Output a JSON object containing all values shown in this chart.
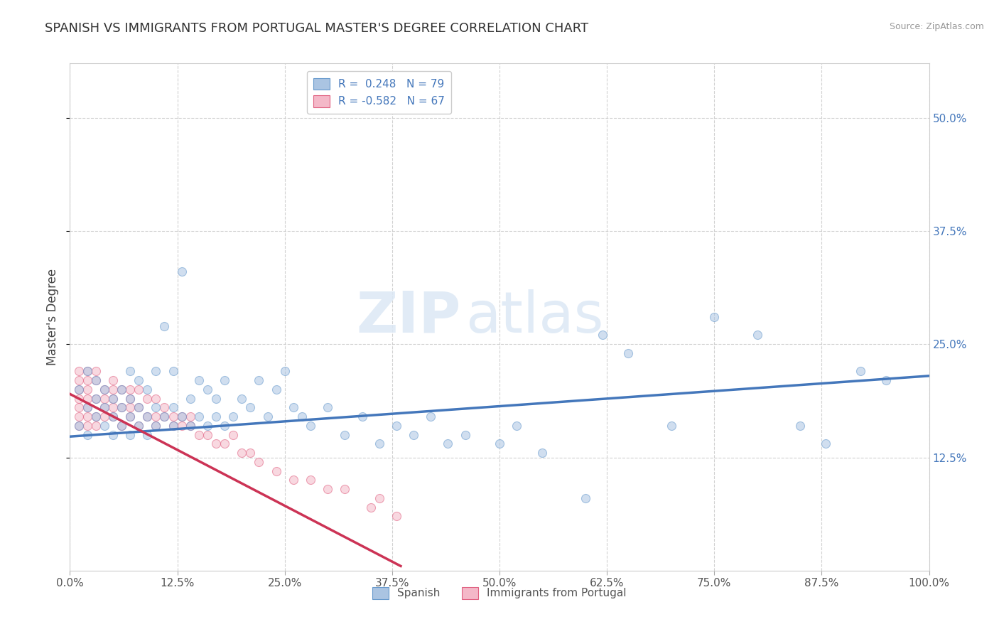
{
  "title": "SPANISH VS IMMIGRANTS FROM PORTUGAL MASTER'S DEGREE CORRELATION CHART",
  "source": "Source: ZipAtlas.com",
  "ylabel": "Master's Degree",
  "xlim": [
    0.0,
    1.0
  ],
  "ylim": [
    0.0,
    0.56
  ],
  "xtick_labels": [
    "0.0%",
    "12.5%",
    "25.0%",
    "37.5%",
    "50.0%",
    "62.5%",
    "75.0%",
    "87.5%",
    "100.0%"
  ],
  "xtick_vals": [
    0.0,
    0.125,
    0.25,
    0.375,
    0.5,
    0.625,
    0.75,
    0.875,
    1.0
  ],
  "ytick_labels": [
    "12.5%",
    "25.0%",
    "37.5%",
    "50.0%"
  ],
  "ytick_vals": [
    0.125,
    0.25,
    0.375,
    0.5
  ],
  "grid_color": "#cccccc",
  "background_color": "#ffffff",
  "blue_color": "#aac4e2",
  "blue_edge_color": "#6699cc",
  "pink_color": "#f4b8c8",
  "pink_edge_color": "#e06080",
  "blue_line_color": "#4477bb",
  "pink_line_color": "#cc3355",
  "R_blue": 0.248,
  "N_blue": 79,
  "R_pink": -0.582,
  "N_pink": 67,
  "legend_labels": [
    "Spanish",
    "Immigrants from Portugal"
  ],
  "watermark_zip": "ZIP",
  "watermark_atlas": "atlas",
  "blue_scatter_x": [
    0.01,
    0.01,
    0.02,
    0.02,
    0.02,
    0.03,
    0.03,
    0.03,
    0.04,
    0.04,
    0.04,
    0.05,
    0.05,
    0.05,
    0.06,
    0.06,
    0.06,
    0.07,
    0.07,
    0.07,
    0.07,
    0.08,
    0.08,
    0.08,
    0.09,
    0.09,
    0.09,
    0.1,
    0.1,
    0.1,
    0.11,
    0.11,
    0.12,
    0.12,
    0.12,
    0.13,
    0.13,
    0.14,
    0.14,
    0.15,
    0.15,
    0.16,
    0.16,
    0.17,
    0.17,
    0.18,
    0.18,
    0.19,
    0.2,
    0.21,
    0.22,
    0.23,
    0.24,
    0.25,
    0.26,
    0.27,
    0.28,
    0.3,
    0.32,
    0.34,
    0.36,
    0.38,
    0.4,
    0.42,
    0.44,
    0.46,
    0.5,
    0.52,
    0.55,
    0.6,
    0.62,
    0.65,
    0.7,
    0.75,
    0.8,
    0.85,
    0.88,
    0.92,
    0.95
  ],
  "blue_scatter_y": [
    0.16,
    0.2,
    0.18,
    0.15,
    0.22,
    0.17,
    0.19,
    0.21,
    0.16,
    0.18,
    0.2,
    0.15,
    0.17,
    0.19,
    0.16,
    0.18,
    0.2,
    0.15,
    0.17,
    0.19,
    0.22,
    0.16,
    0.18,
    0.21,
    0.15,
    0.17,
    0.2,
    0.16,
    0.18,
    0.22,
    0.17,
    0.27,
    0.16,
    0.18,
    0.22,
    0.17,
    0.33,
    0.16,
    0.19,
    0.17,
    0.21,
    0.16,
    0.2,
    0.17,
    0.19,
    0.16,
    0.21,
    0.17,
    0.19,
    0.18,
    0.21,
    0.17,
    0.2,
    0.22,
    0.18,
    0.17,
    0.16,
    0.18,
    0.15,
    0.17,
    0.14,
    0.16,
    0.15,
    0.17,
    0.14,
    0.15,
    0.14,
    0.16,
    0.13,
    0.08,
    0.26,
    0.24,
    0.16,
    0.28,
    0.26,
    0.16,
    0.14,
    0.22,
    0.21
  ],
  "pink_scatter_x": [
    0.01,
    0.01,
    0.01,
    0.01,
    0.01,
    0.01,
    0.01,
    0.02,
    0.02,
    0.02,
    0.02,
    0.02,
    0.02,
    0.02,
    0.03,
    0.03,
    0.03,
    0.03,
    0.03,
    0.04,
    0.04,
    0.04,
    0.04,
    0.05,
    0.05,
    0.05,
    0.05,
    0.05,
    0.06,
    0.06,
    0.06,
    0.07,
    0.07,
    0.07,
    0.07,
    0.08,
    0.08,
    0.08,
    0.09,
    0.09,
    0.1,
    0.1,
    0.1,
    0.11,
    0.11,
    0.12,
    0.12,
    0.13,
    0.13,
    0.14,
    0.14,
    0.15,
    0.16,
    0.17,
    0.18,
    0.19,
    0.2,
    0.21,
    0.22,
    0.24,
    0.26,
    0.28,
    0.3,
    0.32,
    0.35,
    0.36,
    0.38
  ],
  "pink_scatter_y": [
    0.17,
    0.19,
    0.21,
    0.16,
    0.22,
    0.18,
    0.2,
    0.17,
    0.19,
    0.21,
    0.16,
    0.22,
    0.18,
    0.2,
    0.17,
    0.19,
    0.21,
    0.16,
    0.22,
    0.18,
    0.2,
    0.17,
    0.19,
    0.18,
    0.2,
    0.17,
    0.19,
    0.21,
    0.18,
    0.2,
    0.16,
    0.18,
    0.2,
    0.17,
    0.19,
    0.18,
    0.2,
    0.16,
    0.17,
    0.19,
    0.17,
    0.19,
    0.16,
    0.17,
    0.18,
    0.17,
    0.16,
    0.16,
    0.17,
    0.16,
    0.17,
    0.15,
    0.15,
    0.14,
    0.14,
    0.15,
    0.13,
    0.13,
    0.12,
    0.11,
    0.1,
    0.1,
    0.09,
    0.09,
    0.07,
    0.08,
    0.06
  ],
  "blue_line_x": [
    0.0,
    1.0
  ],
  "blue_line_y": [
    0.148,
    0.215
  ],
  "pink_line_x": [
    0.0,
    0.385
  ],
  "pink_line_y": [
    0.195,
    0.005
  ],
  "title_fontsize": 13,
  "axis_label_fontsize": 12,
  "tick_fontsize": 11,
  "legend_fontsize": 11,
  "marker_size": 75,
  "marker_alpha": 0.55,
  "line_width": 2.5
}
